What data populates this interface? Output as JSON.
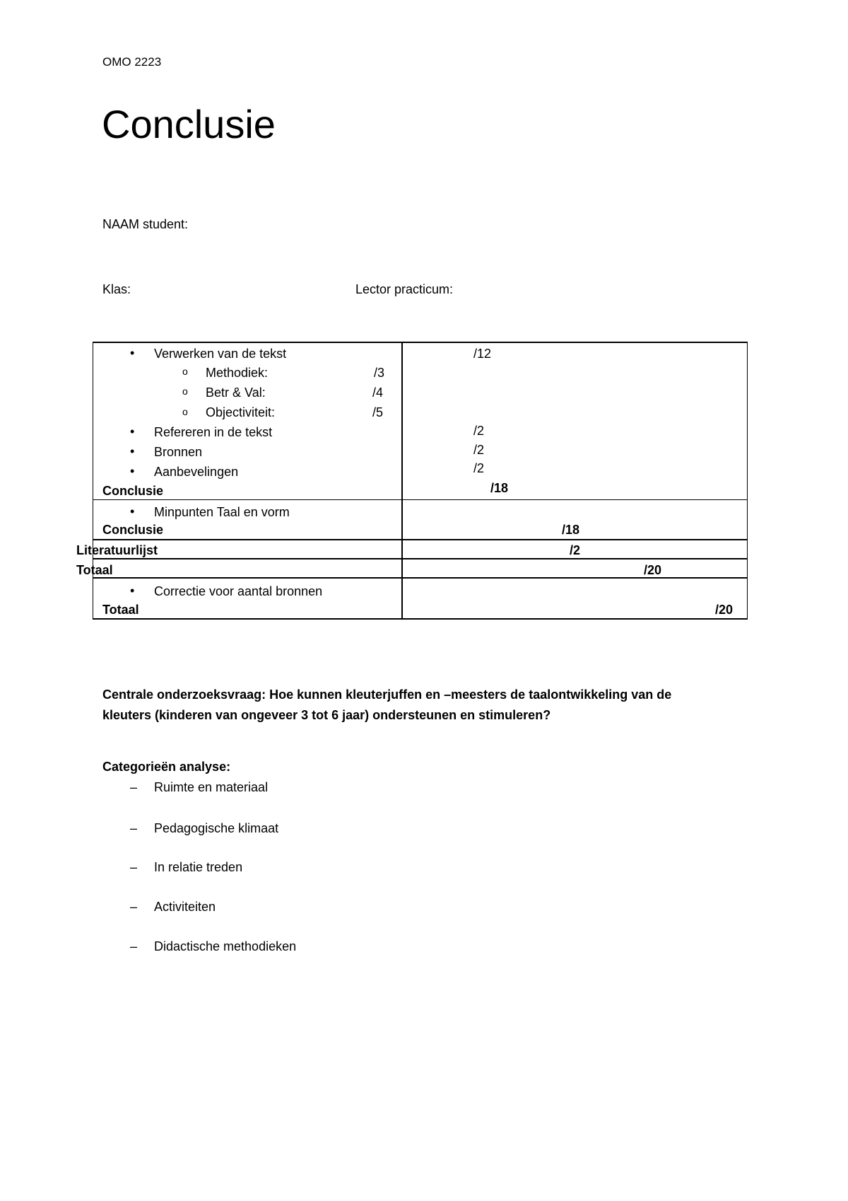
{
  "header": "OMO 2223",
  "title": "Conclusie",
  "fields": {
    "naam": "NAAM student:",
    "klas": "Klas:",
    "lector": "Lector practicum:"
  },
  "table": {
    "verwerken": "Verwerken van de tekst",
    "verwerken_score": "/12",
    "methodiek": "Methodiek:",
    "methodiek_score": "/3",
    "betr": "Betr & Val:",
    "betr_score": "/4",
    "objectiviteit": "Objectiviteit:",
    "objectiviteit_score": "/5",
    "refereren": "Refereren in de tekst",
    "refereren_score": "/2",
    "bronnen": "Bronnen",
    "bronnen_score": "/2",
    "aanbevelingen": "Aanbevelingen",
    "aanbevelingen_score": "/2",
    "conclusie1": "Conclusie",
    "conclusie1_score": "/18",
    "minpunten": "Minpunten Taal en vorm",
    "conclusie2": "Conclusie",
    "conclusie2_score": "/18",
    "literatuur": "Literatuurlijst",
    "literatuur_score": "/2",
    "totaal1": "Totaal",
    "totaal1_score": "/20",
    "correctie": "Correctie voor aantal bronnen",
    "totaal2": "Totaal",
    "totaal2_score": "/20"
  },
  "question_line1": "Centrale onderzoeksvraag: Hoe kunnen kleuterjuffen en –meesters de taalontwikkeling van de",
  "question_line2": "kleuters (kinderen van ongeveer 3 tot 6 jaar) ondersteunen en stimuleren?",
  "categories_label": "Categorieën analyse:",
  "categories": [
    "Ruimte en materiaal",
    "Pedagogische klimaat",
    "In relatie treden",
    "Activiteiten",
    "Didactische methodieken"
  ]
}
